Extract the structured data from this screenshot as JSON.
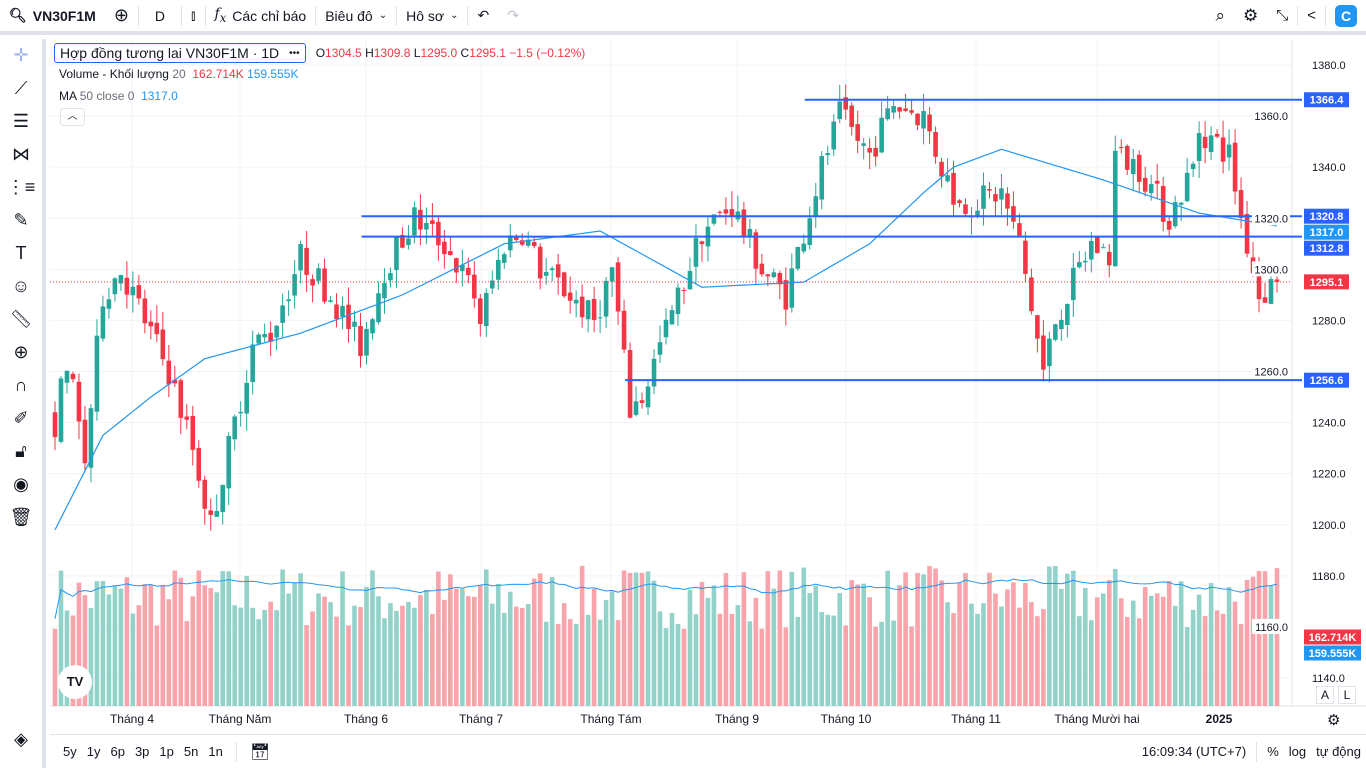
{
  "toolbar": {
    "symbol": "VN30F1M",
    "interval": "D",
    "indicators": "Các chỉ báo",
    "chart_menu": "Biêu đô",
    "profile_menu": "Hô sơ"
  },
  "legend": {
    "title": "Hợp đồng tương lai VN30F1M · 1D",
    "o_label": "O",
    "o": "1304.5",
    "h_label": "H",
    "h": "1309.8",
    "l_label": "L",
    "l": "1295.0",
    "c_label": "C",
    "c": "1295.1",
    "change": "−1.5 (−0.12%)",
    "volume_label": "Volume - Khối lượng",
    "volume_len": "20",
    "volume_val": "162.714K",
    "volume_ma": "159.555K",
    "ma_label": "MA",
    "ma_params": "50 close 0",
    "ma_val": "1317.0"
  },
  "bottom": {
    "ranges": [
      "5y",
      "1y",
      "6p",
      "3p",
      "1p",
      "5n",
      "1n"
    ],
    "time": "16:09:34 (UTC+7)",
    "percent": "%",
    "log": "log",
    "auto": "tự động"
  },
  "scale_buttons": {
    "a": "A",
    "l": "L"
  },
  "colors": {
    "up": "#26a69a",
    "down": "#f23645",
    "level": "#2962ff",
    "ma": "#2196f3",
    "vol_up": "#92d2c9",
    "vol_down": "#f9a3aa"
  },
  "chart_data": {
    "type": "candlestick",
    "y_ticks": [
      "1380.0",
      "1360.0",
      "1340.0",
      "1320.0",
      "1300.0",
      "1280.0",
      "1260.0",
      "1240.0",
      "1220.0",
      "1200.0",
      "1180.0",
      "1160.0",
      "1140.0"
    ],
    "ylim": [
      1140,
      1380
    ],
    "x_labels": [
      "Tháng 4",
      "Tháng Năm",
      "Tháng 6",
      "Tháng 7",
      "Tháng Tám",
      "Tháng 9",
      "Tháng 10",
      "Tháng 11",
      "Tháng Mười hai",
      "2025"
    ],
    "bars": 205,
    "close_path": [
      [
        0,
        1240
      ],
      [
        2,
        1265
      ],
      [
        5,
        1225
      ],
      [
        8,
        1290
      ],
      [
        11,
        1300
      ],
      [
        15,
        1280
      ],
      [
        19,
        1260
      ],
      [
        23,
        1230
      ],
      [
        26,
        1200
      ],
      [
        30,
        1240
      ],
      [
        33,
        1270
      ],
      [
        36,
        1275
      ],
      [
        41,
        1305
      ],
      [
        46,
        1290
      ],
      [
        51,
        1270
      ],
      [
        55,
        1300
      ],
      [
        60,
        1320
      ],
      [
        65,
        1310
      ],
      [
        70,
        1290
      ],
      [
        71,
        1280
      ],
      [
        75,
        1310
      ],
      [
        78,
        1315
      ],
      [
        81,
        1300
      ],
      [
        86,
        1290
      ],
      [
        90,
        1280
      ],
      [
        93,
        1300
      ],
      [
        96,
        1245
      ],
      [
        98,
        1250
      ],
      [
        101,
        1270
      ],
      [
        105,
        1295
      ],
      [
        108,
        1315
      ],
      [
        113,
        1325
      ],
      [
        118,
        1300
      ],
      [
        122,
        1290
      ],
      [
        125,
        1315
      ],
      [
        128,
        1340
      ],
      [
        131,
        1360
      ],
      [
        136,
        1345
      ],
      [
        140,
        1365
      ],
      [
        145,
        1360
      ],
      [
        148,
        1340
      ],
      [
        151,
        1325
      ],
      [
        158,
        1330
      ],
      [
        161,
        1310
      ],
      [
        165,
        1260
      ],
      [
        167,
        1280
      ],
      [
        170,
        1295
      ],
      [
        173,
        1310
      ],
      [
        176,
        1305
      ],
      [
        177,
        1345
      ],
      [
        181,
        1340
      ],
      [
        186,
        1320
      ],
      [
        190,
        1340
      ],
      [
        191,
        1355
      ],
      [
        196,
        1345
      ],
      [
        198,
        1320
      ],
      [
        201,
        1290
      ],
      [
        204,
        1295.1
      ]
    ],
    "ma50_path": [
      [
        0,
        1198
      ],
      [
        8,
        1235
      ],
      [
        16,
        1250
      ],
      [
        25,
        1265
      ],
      [
        41,
        1275
      ],
      [
        58,
        1290
      ],
      [
        75,
        1310
      ],
      [
        91,
        1315
      ],
      [
        108,
        1293
      ],
      [
        125,
        1295
      ],
      [
        136,
        1310
      ],
      [
        145,
        1330
      ],
      [
        150,
        1340
      ],
      [
        158,
        1347
      ],
      [
        175,
        1335
      ],
      [
        191,
        1322
      ],
      [
        204,
        1317
      ]
    ],
    "levels": [
      {
        "price": 1366.4,
        "label": "1366.4",
        "from": 126
      },
      {
        "price": 1320.8,
        "label": "1320.8",
        "from": 52
      },
      {
        "price": 1312.8,
        "label": "1312.8",
        "from": 52
      },
      {
        "price": 1256.6,
        "label": "1256.6",
        "from": 96
      }
    ],
    "ma_label": "1317.0",
    "last_price": "1295.1",
    "volume_last": "162.714K",
    "volume_ma_last": "159.555K"
  }
}
